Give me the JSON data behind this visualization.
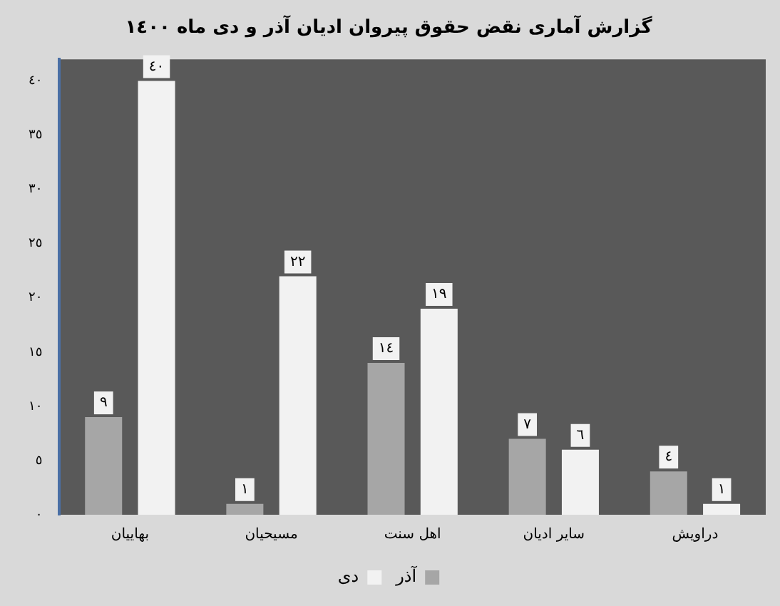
{
  "chart_data": {
    "type": "bar",
    "title": "گزارش آماری نقض حقوق پیروان ادیان آذر و دی ماه ١٤٠٠",
    "categories": [
      "بهاییان",
      "مسیحیان",
      "اهل سنت",
      "سایر ادیان",
      "دراویش"
    ],
    "series": [
      {
        "name": "آذر",
        "color": "#a6a6a6",
        "values": [
          9,
          1,
          14,
          7,
          4
        ],
        "value_labels": [
          "٩",
          "١",
          "١٤",
          "٧",
          "٤"
        ]
      },
      {
        "name": "دی",
        "color": "#f2f2f2",
        "values": [
          40,
          22,
          19,
          6,
          1
        ],
        "value_labels": [
          "٤٠",
          "٢٢",
          "١٩",
          "٦",
          "١"
        ]
      }
    ],
    "ylim": [
      0,
      42
    ],
    "yticks": [
      {
        "value": 0,
        "label": "٠"
      },
      {
        "value": 5,
        "label": "٥"
      },
      {
        "value": 10,
        "label": "١٠"
      },
      {
        "value": 15,
        "label": "١٥"
      },
      {
        "value": 20,
        "label": "٢٠"
      },
      {
        "value": 25,
        "label": "٢٥"
      },
      {
        "value": 30,
        "label": "٣٠"
      },
      {
        "value": 35,
        "label": "٣٥"
      },
      {
        "value": 40,
        "label": "٤٠"
      }
    ],
    "grid": false,
    "legend": "bottom"
  }
}
